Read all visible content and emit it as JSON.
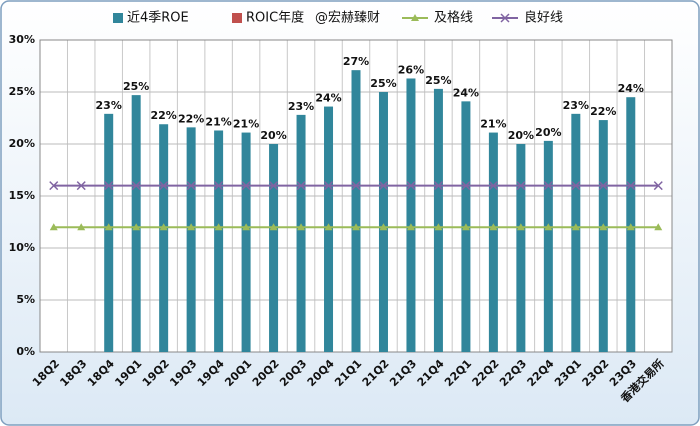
{
  "chart_data": {
    "type": "bar",
    "watermark": "@宏赫臻财",
    "categories": [
      "18Q2",
      "18Q3",
      "18Q4",
      "19Q1",
      "19Q2",
      "19Q3",
      "19Q4",
      "20Q1",
      "20Q2",
      "20Q3",
      "20Q4",
      "21Q1",
      "21Q2",
      "21Q3",
      "21Q4",
      "22Q1",
      "22Q2",
      "22Q3",
      "22Q4",
      "23Q1",
      "23Q2",
      "23Q3",
      "香港交易所"
    ],
    "series": [
      {
        "name": "近4季ROE",
        "type": "bar",
        "color": "#31869b",
        "values": [
          null,
          null,
          22.9,
          24.7,
          21.9,
          21.6,
          21.3,
          21.1,
          20.0,
          22.8,
          23.6,
          27.1,
          25.0,
          26.3,
          25.3,
          24.1,
          21.1,
          20.0,
          20.3,
          22.9,
          22.3,
          24.5,
          null
        ],
        "value_labels": [
          null,
          null,
          "23%",
          "25%",
          "22%",
          "22%",
          "21%",
          "21%",
          "20%",
          "23%",
          "24%",
          "27%",
          "25%",
          "26%",
          "25%",
          "24%",
          "21%",
          "20%",
          "20%",
          "23%",
          "22%",
          "24%",
          null
        ]
      },
      {
        "name": "ROIC年度",
        "type": "bar",
        "color": "#c0504d",
        "values": [
          null,
          null,
          null,
          null,
          null,
          null,
          null,
          null,
          null,
          null,
          null,
          null,
          null,
          null,
          null,
          null,
          null,
          null,
          null,
          null,
          null,
          null,
          null
        ]
      },
      {
        "name": "及格线",
        "type": "line",
        "marker": "triangle",
        "color": "#9bbb59",
        "values": [
          12,
          12,
          12,
          12,
          12,
          12,
          12,
          12,
          12,
          12,
          12,
          12,
          12,
          12,
          12,
          12,
          12,
          12,
          12,
          12,
          12,
          12,
          12
        ]
      },
      {
        "name": "良好线",
        "type": "line",
        "marker": "x",
        "color": "#8064a2",
        "values": [
          16,
          16,
          16,
          16,
          16,
          16,
          16,
          16,
          16,
          16,
          16,
          16,
          16,
          16,
          16,
          16,
          16,
          16,
          16,
          16,
          16,
          16,
          16
        ]
      }
    ],
    "ylim": [
      0,
      30
    ],
    "yticks": [
      {
        "value": 0,
        "label": "0%"
      },
      {
        "value": 5,
        "label": "5%"
      },
      {
        "value": 10,
        "label": "10%"
      },
      {
        "value": 15,
        "label": "15%"
      },
      {
        "value": 20,
        "label": "20%"
      },
      {
        "value": 25,
        "label": "25%"
      },
      {
        "value": 30,
        "label": "30%"
      }
    ],
    "grid": true
  }
}
